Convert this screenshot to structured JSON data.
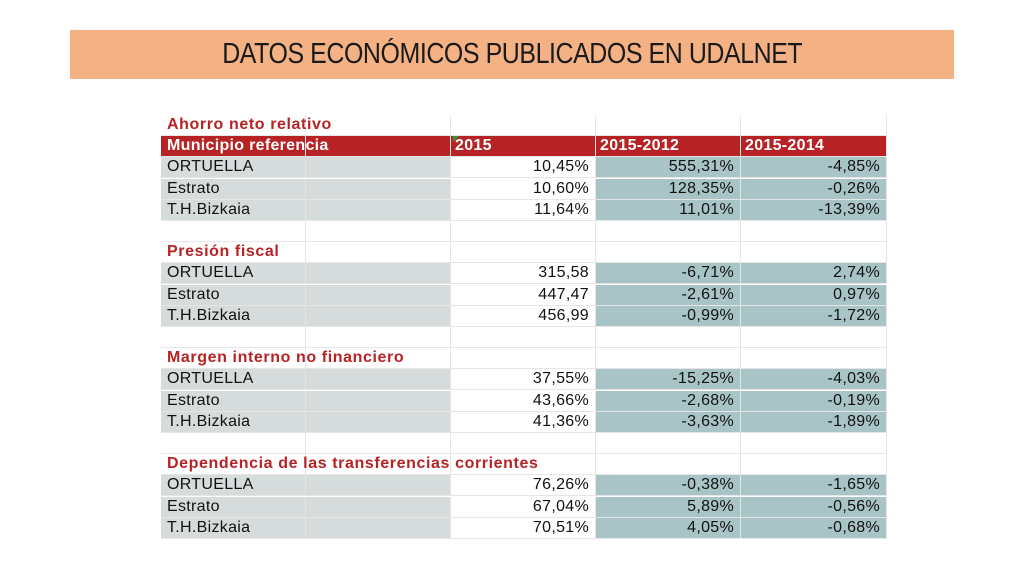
{
  "slide": {
    "title": "DATOS ECONÓMICOS PUBLICADOS EN UDALNET"
  },
  "table": {
    "header": {
      "first_section": "Ahorro neto relativo",
      "label": "Municipio referencia",
      "columns": [
        "2015",
        "2015-2012",
        "2015-2014"
      ]
    },
    "sections": [
      {
        "title": "Ahorro neto relativo",
        "rows": [
          {
            "name": "ORTUELLA",
            "v2015": "10,45%",
            "v2012": "555,31%",
            "v2014": "-4,85%"
          },
          {
            "name": "Estrato",
            "v2015": "10,60%",
            "v2012": "128,35%",
            "v2014": "-0,26%"
          },
          {
            "name": "T.H.Bizkaia",
            "v2015": "11,64%",
            "v2012": "11,01%",
            "v2014": "-13,39%"
          }
        ]
      },
      {
        "title": "Presión fiscal",
        "rows": [
          {
            "name": "ORTUELLA",
            "v2015": "315,58",
            "v2012": "-6,71%",
            "v2014": "2,74%"
          },
          {
            "name": "Estrato",
            "v2015": "447,47",
            "v2012": "-2,61%",
            "v2014": "0,97%"
          },
          {
            "name": "T.H.Bizkaia",
            "v2015": "456,99",
            "v2012": "-0,99%",
            "v2014": "-1,72%"
          }
        ]
      },
      {
        "title": "Margen interno no financiero",
        "rows": [
          {
            "name": "ORTUELLA",
            "v2015": "37,55%",
            "v2012": "-15,25%",
            "v2014": "-4,03%"
          },
          {
            "name": "Estrato",
            "v2015": "43,66%",
            "v2012": "-2,68%",
            "v2014": "-0,19%"
          },
          {
            "name": "T.H.Bizkaia",
            "v2015": "41,36%",
            "v2012": "-3,63%",
            "v2014": "-1,89%"
          }
        ]
      },
      {
        "title": "Dependencia de las transferencias corrientes",
        "rows": [
          {
            "name": "ORTUELLA",
            "v2015": "76,26%",
            "v2012": "-0,38%",
            "v2014": "-1,65%"
          },
          {
            "name": "Estrato",
            "v2015": "67,04%",
            "v2012": "5,89%",
            "v2014": "-0,56%"
          },
          {
            "name": "T.H.Bizkaia",
            "v2015": "70,51%",
            "v2012": "4,05%",
            "v2014": "-0,68%"
          }
        ]
      }
    ]
  },
  "colors": {
    "title_bar": "#f4b183",
    "header_red": "#b72325",
    "name_grey": "#d6dcdc",
    "value_teal": "#a9c4c6"
  }
}
